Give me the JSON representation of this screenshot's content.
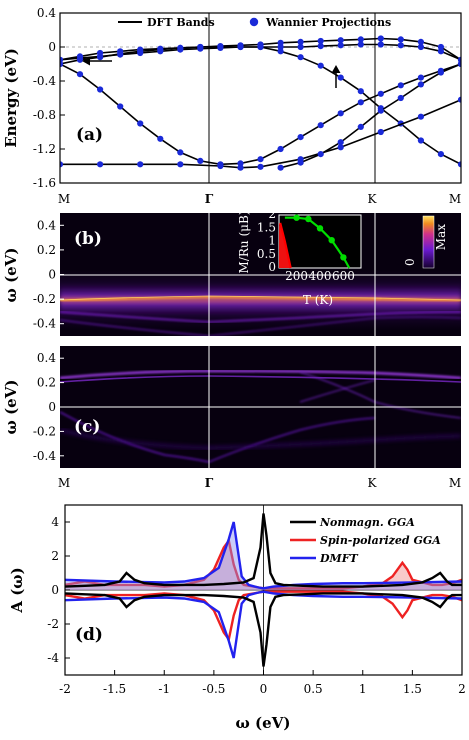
{
  "chart_data": [
    {
      "type": "line",
      "panel_label": "(a)",
      "ylabel": "Energy (eV)",
      "ylim": [
        -1.6,
        0.4
      ],
      "yticks": [
        "0.4",
        "0",
        "-0.4",
        "-0.8",
        "-1.2",
        "-1.6"
      ],
      "kpath": [
        "M",
        "Γ",
        "K",
        "M"
      ],
      "legend": {
        "placement": "top",
        "entries": [
          "DFT Bands",
          "Wannier Projections"
        ]
      },
      "series": [
        {
          "name": "DFT Bands",
          "style": "line"
        },
        {
          "name": "Wannier Projections",
          "style": "markers"
        }
      ],
      "bands": [
        {
          "x": [
            0,
            0.05,
            0.1,
            0.15,
            0.2,
            0.25,
            0.3,
            0.35,
            0.4,
            0.45,
            0.5,
            0.55,
            0.6,
            0.65,
            0.7,
            0.75,
            0.8,
            0.85,
            0.9,
            0.95,
            1.0
          ],
          "y": [
            -0.15,
            -0.13,
            -0.11,
            -0.09,
            -0.07,
            -0.05,
            -0.03,
            -0.02,
            -0.01,
            0.0,
            0.0,
            0.0,
            0.0,
            0.01,
            0.02,
            0.03,
            0.03,
            0.02,
            0.0,
            -0.05,
            -0.15
          ]
        },
        {
          "x": [
            0,
            0.05,
            0.1,
            0.15,
            0.2,
            0.25,
            0.3,
            0.35,
            0.4,
            0.45,
            0.5,
            0.55,
            0.6,
            0.65,
            0.7,
            0.75,
            0.8,
            0.85,
            0.9,
            0.95,
            1.0
          ],
          "y": [
            -0.15,
            -0.11,
            -0.07,
            -0.05,
            -0.03,
            -0.02,
            -0.01,
            0.0,
            0.01,
            0.02,
            0.03,
            0.05,
            0.06,
            0.07,
            0.08,
            0.09,
            0.1,
            0.09,
            0.06,
            0.0,
            -0.15
          ]
        },
        {
          "x": [
            0,
            0.05,
            0.1,
            0.15,
            0.2,
            0.25,
            0.3,
            0.35,
            0.4,
            0.45,
            0.5,
            0.55,
            0.6,
            0.65,
            0.7,
            0.75,
            0.8,
            0.85,
            0.9,
            0.95,
            1.0
          ],
          "y": [
            -0.2,
            -0.32,
            -0.5,
            -0.7,
            -0.9,
            -1.08,
            -1.24,
            -1.34,
            -1.38,
            -1.37,
            -1.32,
            -1.2,
            -1.06,
            -0.92,
            -0.78,
            -0.65,
            -0.55,
            -0.45,
            -0.36,
            -0.28,
            -0.2
          ]
        },
        {
          "x": [
            0,
            0.05,
            0.1,
            0.15,
            0.2,
            0.25,
            0.3,
            0.35,
            0.4,
            0.45,
            0.5,
            0.55,
            0.6,
            0.65,
            0.7,
            0.75,
            0.8,
            0.85,
            0.9,
            0.95,
            1.0
          ],
          "y": [
            -0.2,
            -0.15,
            -0.12,
            -0.08,
            -0.05,
            -0.03,
            -0.01,
            0.0,
            0.0,
            0.0,
            0.0,
            -0.05,
            -0.12,
            -0.22,
            -0.36,
            -0.52,
            -0.72,
            -0.9,
            -1.1,
            -1.26,
            -1.38
          ]
        },
        {
          "x": [
            0,
            0.1,
            0.2,
            0.3,
            0.4,
            0.45,
            0.5,
            0.6,
            0.7,
            0.8,
            0.9,
            1.0
          ],
          "y": [
            -1.38,
            -1.38,
            -1.38,
            -1.38,
            -1.4,
            -1.42,
            -1.41,
            -1.32,
            -1.18,
            -1.0,
            -0.82,
            -0.62
          ]
        },
        {
          "x": [
            0.55,
            0.6,
            0.65,
            0.7,
            0.75,
            0.8,
            0.85,
            0.9,
            0.95,
            1.0
          ],
          "y": [
            -1.42,
            -1.36,
            -1.26,
            -1.12,
            -0.94,
            -0.75,
            -0.6,
            -0.44,
            -0.3,
            -0.2
          ]
        }
      ],
      "annotations": [
        "arrow-left",
        "arrow-up"
      ]
    },
    {
      "type": "heatmap",
      "panel_label": "(b)",
      "ylabel": "ω (eV)",
      "ylim": [
        -0.5,
        0.5
      ],
      "yticks": [
        "0.4",
        "0.2",
        "0",
        "-0.2",
        "-0.4"
      ],
      "kpath": [
        "M",
        "Γ",
        "K",
        "M"
      ],
      "colorbar": {
        "min_label": "0",
        "max_label": "Max"
      },
      "inset": {
        "type": "line",
        "xlabel": "T (K)",
        "ylabel": "M/Ru (μB)",
        "xticks": [
          "200",
          "400",
          "600"
        ],
        "yticks": [
          "0",
          "0.5",
          "1",
          "1.5",
          "2"
        ],
        "xlim": [
          50,
          750
        ],
        "ylim": [
          0,
          2
        ],
        "series": [
          {
            "name": "",
            "color": "#00dd00",
            "x": [
              100,
              200,
              300,
              400,
              500,
              600,
              650
            ],
            "y": [
              1.9,
              1.9,
              1.85,
              1.5,
              1.05,
              0.4,
              0.0
            ]
          },
          {
            "name": "",
            "color": "#ff0000",
            "x": [
              60,
              100,
              150
            ],
            "y": [
              1.7,
              1.0,
              0.0
            ]
          }
        ]
      }
    },
    {
      "type": "heatmap",
      "panel_label": "(c)",
      "ylabel": "ω (eV)",
      "ylim": [
        -0.5,
        0.5
      ],
      "yticks": [
        "0.4",
        "0.2",
        "0",
        "-0.2",
        "-0.4"
      ],
      "kpath": [
        "M",
        "Γ",
        "K",
        "M"
      ]
    },
    {
      "type": "line",
      "panel_label": "(d)",
      "xlabel": "ω (eV)",
      "ylabel": "A (ω)",
      "xlim": [
        -2,
        2
      ],
      "ylim": [
        -5,
        5
      ],
      "xticks": [
        "-2",
        "-1.5",
        "-1",
        "-0.5",
        "0",
        "0.5",
        "1",
        "1.5",
        "2"
      ],
      "yticks": [
        "4",
        "2",
        "0",
        "-2",
        "-4"
      ],
      "legend": {
        "placement": "top-right",
        "entries": [
          "Nonmagn. GGA",
          "Spin-polarized GGA",
          "DMFT"
        ]
      },
      "series": [
        {
          "name": "Nonmagn. GGA",
          "color": "#000000",
          "x": [
            -2,
            -1.8,
            -1.6,
            -1.45,
            -1.38,
            -1.3,
            -1.2,
            -1.0,
            -0.8,
            -0.6,
            -0.4,
            -0.2,
            -0.1,
            -0.03,
            0.0,
            0.03,
            0.07,
            0.12,
            0.2,
            0.4,
            0.6,
            0.8,
            1.0,
            1.2,
            1.4,
            1.6,
            1.7,
            1.78,
            1.85,
            1.9,
            2.0
          ],
          "y": [
            0.2,
            0.25,
            0.3,
            0.5,
            1.0,
            0.6,
            0.4,
            0.3,
            0.3,
            0.3,
            0.35,
            0.45,
            0.7,
            2.5,
            4.5,
            3.2,
            1.0,
            0.4,
            0.3,
            0.25,
            0.2,
            0.2,
            0.2,
            0.25,
            0.3,
            0.45,
            0.7,
            1.0,
            0.5,
            0.3,
            0.3
          ]
        },
        {
          "name": "Spin-polarized GGA",
          "color": "#ee2222",
          "x": [
            -2,
            -1.9,
            -1.8,
            -1.6,
            -1.4,
            -1.2,
            -1.0,
            -0.8,
            -0.6,
            -0.5,
            -0.4,
            -0.35,
            -0.3,
            -0.25,
            -0.2,
            -0.1,
            0.0,
            0.1,
            0.2,
            0.4,
            0.6,
            0.8,
            1.0,
            1.2,
            1.3,
            1.4,
            1.45,
            1.5,
            1.7,
            1.8,
            1.9,
            2.0
          ],
          "y": [
            0.3,
            0.4,
            0.5,
            0.3,
            0.3,
            0.3,
            0.2,
            0.3,
            0.6,
            1.2,
            2.5,
            2.9,
            1.5,
            0.6,
            0.3,
            0.2,
            0.1,
            0.1,
            0.1,
            0.1,
            0.1,
            0.1,
            0.2,
            0.4,
            0.8,
            1.6,
            1.2,
            0.6,
            0.3,
            0.3,
            0.4,
            0.6
          ]
        },
        {
          "name": "DMFT",
          "color": "#2222ee",
          "x": [
            -2,
            -1.5,
            -1.0,
            -0.8,
            -0.6,
            -0.45,
            -0.35,
            -0.3,
            -0.27,
            -0.22,
            -0.15,
            -0.05,
            0.0,
            0.1,
            0.2,
            0.3,
            0.5,
            0.8,
            1.0,
            1.5,
            2.0
          ],
          "y": [
            0.6,
            0.5,
            0.45,
            0.5,
            0.7,
            1.3,
            3.0,
            4.0,
            2.8,
            0.8,
            0.3,
            0.15,
            0.1,
            0.2,
            0.25,
            0.3,
            0.35,
            0.4,
            0.4,
            0.45,
            0.5
          ]
        }
      ]
    }
  ],
  "kpoint_labels": {
    "row1": [
      "M",
      "Γ",
      "K",
      "M"
    ],
    "row2": [
      "M",
      "Γ",
      "K",
      "M"
    ]
  },
  "colors": {
    "band_line": "#000000",
    "wannier_marker": "#1a2ad8",
    "heat_dark": "#07000f",
    "nonmagn": "#000000",
    "spin_pol": "#ee2222",
    "dmft": "#2222ee"
  }
}
